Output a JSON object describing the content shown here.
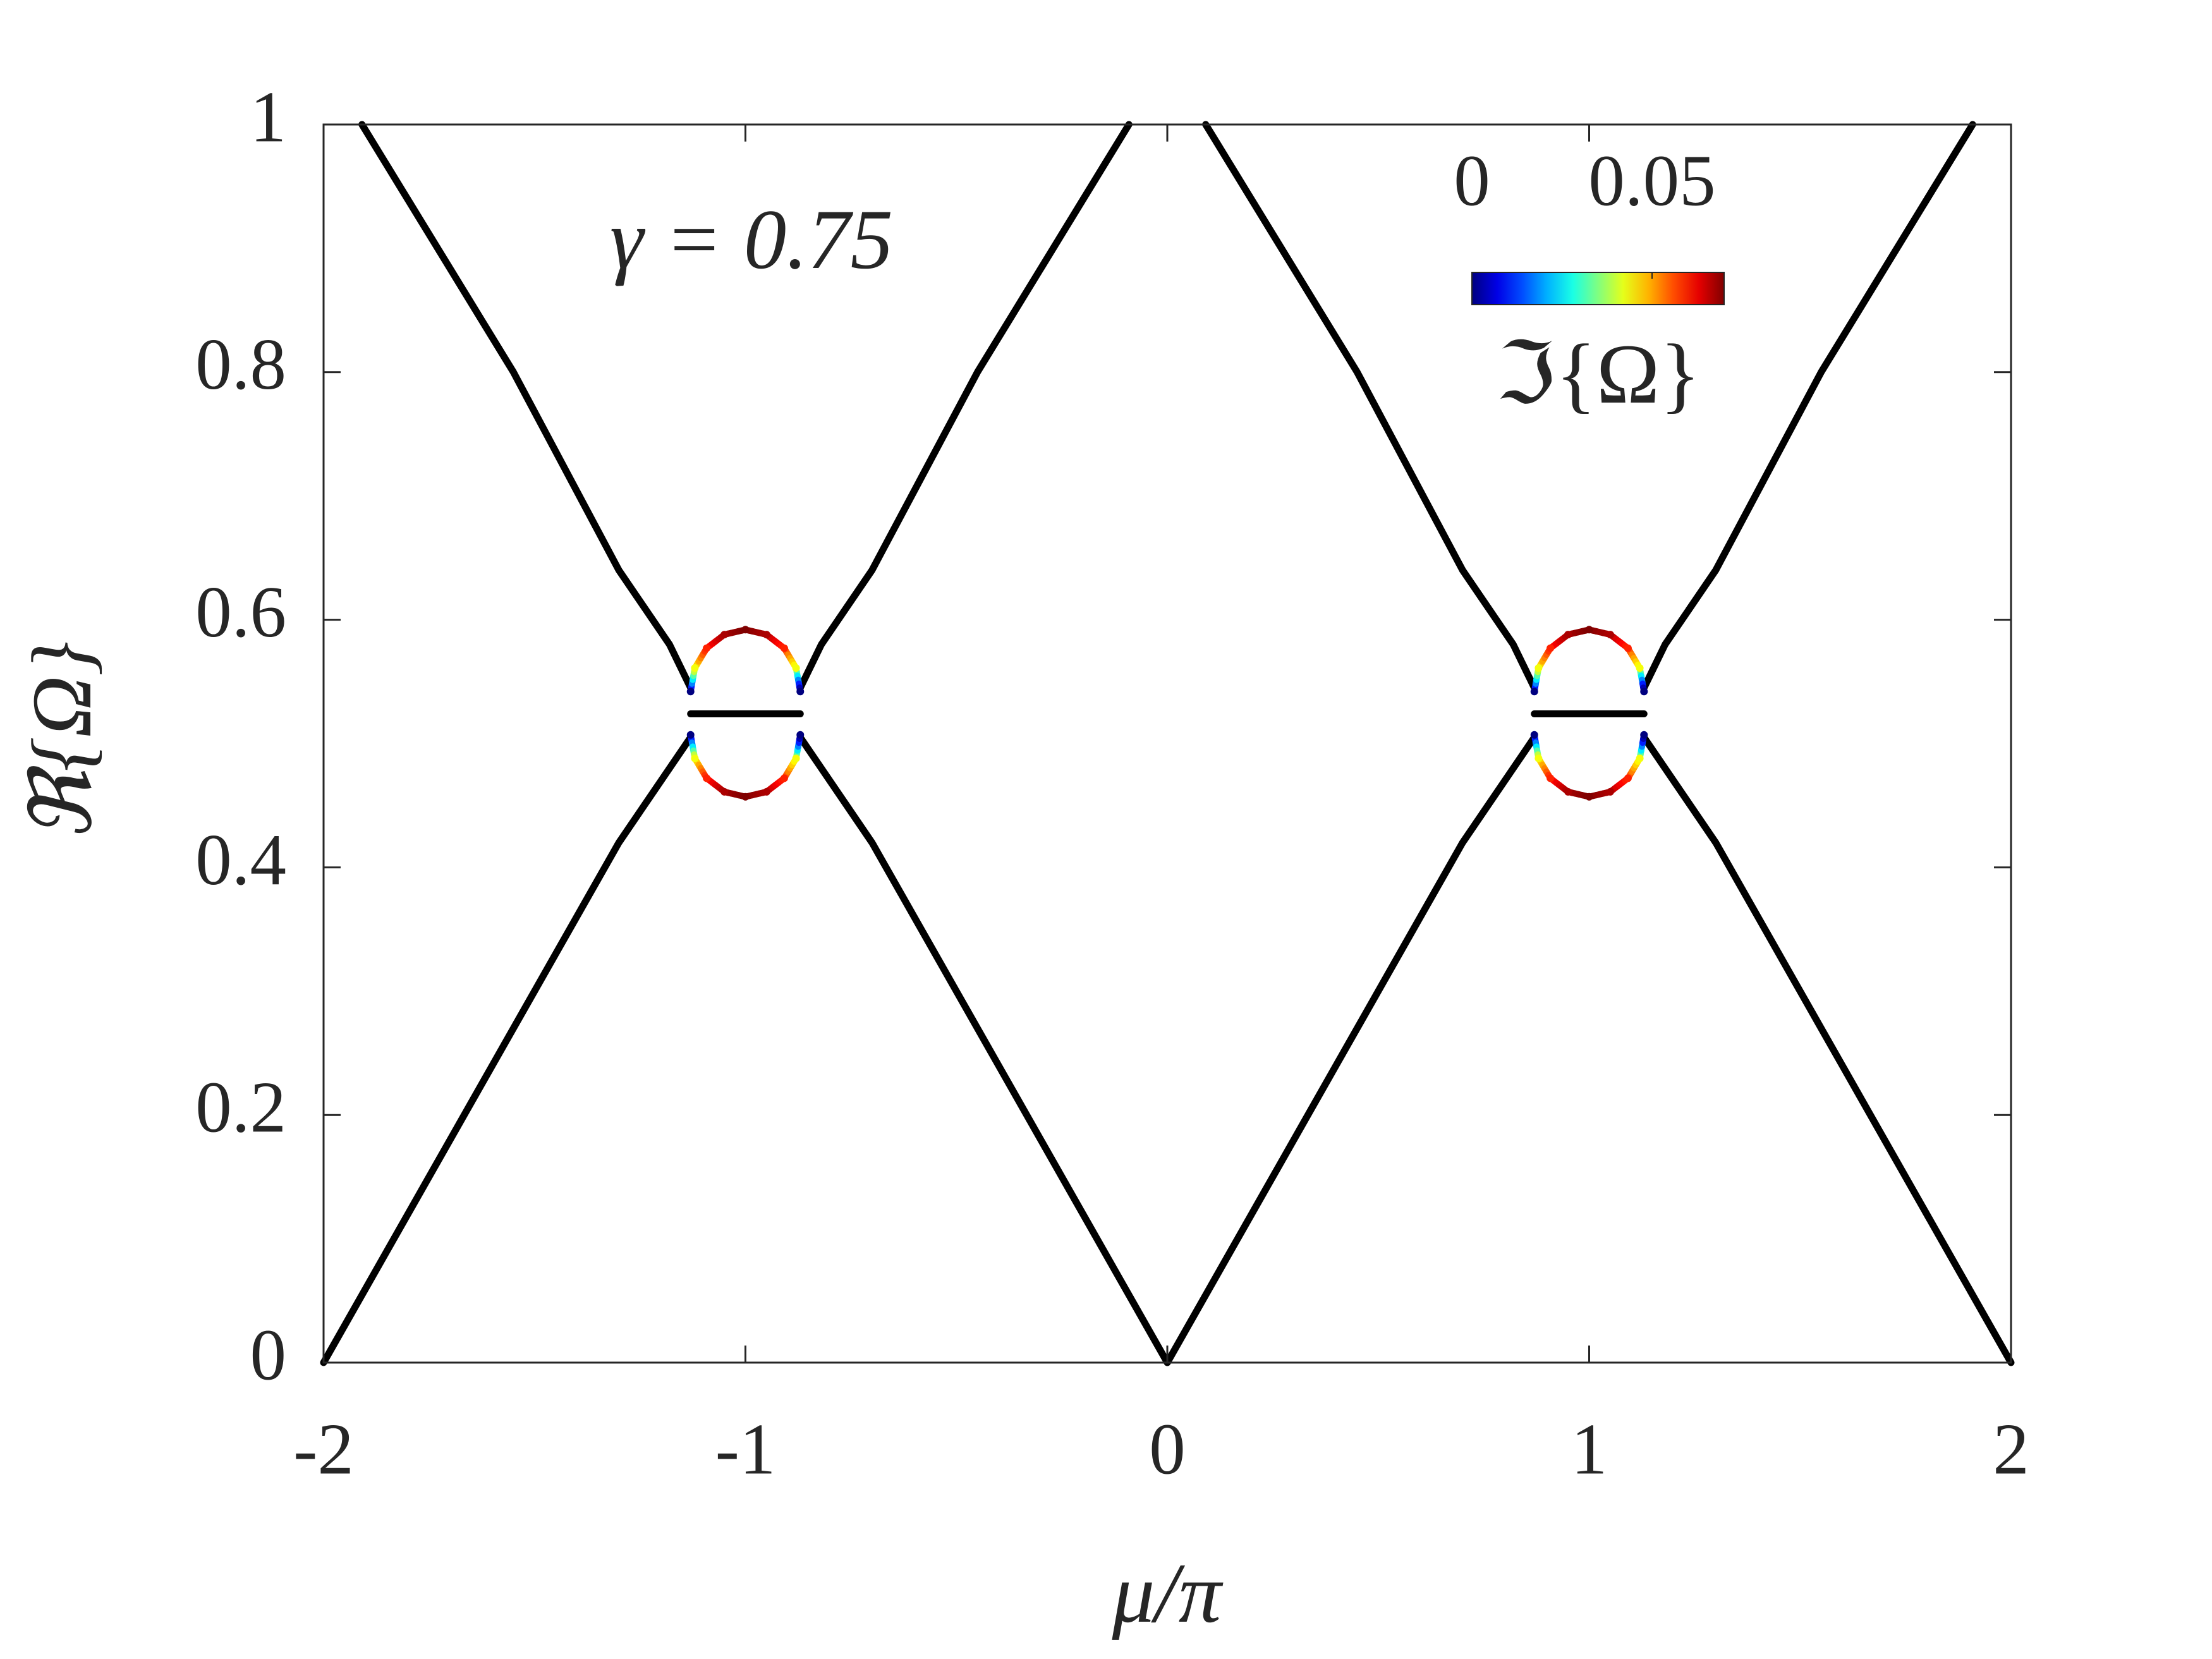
{
  "chart_data": {
    "type": "line",
    "xlabel": "μ/π",
    "ylabel": "ℜ{Ω}",
    "annotation": "γ = 0.75",
    "xlim": [
      -2,
      2
    ],
    "ylim": [
      0,
      1
    ],
    "xticks": [
      -2,
      -1,
      0,
      1,
      2
    ],
    "yticks": [
      0,
      0.2,
      0.4,
      0.6,
      0.8,
      1
    ],
    "grid": false,
    "colorbar": {
      "colormap": "jet",
      "clim": [
        0,
        0.07
      ],
      "ticks": [
        0,
        0.05
      ],
      "label": "ℑ{Ω}"
    },
    "series": [
      {
        "type": "line",
        "color": "#000000",
        "x": [
          -2,
          -1.6,
          -1.3,
          -1.18,
          -1.13
        ],
        "values": [
          0,
          0.24,
          0.42,
          0.48,
          0.505
        ]
      },
      {
        "type": "line",
        "color": "#000000",
        "x": [
          -1.909,
          -1.55,
          -1.3,
          -1.18,
          -1.13
        ],
        "values": [
          1,
          0.8,
          0.64,
          0.58,
          0.545
        ]
      },
      {
        "type": "line",
        "color": "#000000",
        "x": [
          -0.87,
          -0.82,
          -0.7,
          -0.45,
          -0.091
        ],
        "values": [
          0.545,
          0.58,
          0.64,
          0.8,
          1
        ]
      },
      {
        "type": "line",
        "color": "#000000",
        "x": [
          -0.87,
          -0.82,
          -0.7,
          -0.4,
          0
        ],
        "values": [
          0.505,
          0.48,
          0.42,
          0.24,
          0
        ]
      },
      {
        "type": "line",
        "color": "#000000",
        "x": [
          0,
          0.4,
          0.7,
          0.82,
          0.87
        ],
        "values": [
          0,
          0.24,
          0.42,
          0.48,
          0.505
        ]
      },
      {
        "type": "line",
        "color": "#000000",
        "x": [
          0.091,
          0.45,
          0.7,
          0.82,
          0.87
        ],
        "values": [
          1,
          0.8,
          0.64,
          0.58,
          0.545
        ]
      },
      {
        "type": "line",
        "color": "#000000",
        "x": [
          1.13,
          1.18,
          1.3,
          1.55,
          1.909
        ],
        "values": [
          0.545,
          0.58,
          0.64,
          0.8,
          1
        ]
      },
      {
        "type": "line",
        "color": "#000000",
        "x": [
          1.13,
          1.18,
          1.3,
          1.6,
          2
        ],
        "values": [
          0.505,
          0.48,
          0.42,
          0.24,
          0
        ]
      },
      {
        "type": "line",
        "color": "#000000",
        "x": [
          -1.13,
          -0.87
        ],
        "values": [
          0.524,
          0.524
        ]
      },
      {
        "type": "line",
        "color": "#000000",
        "x": [
          0.87,
          1.13
        ],
        "values": [
          0.524,
          0.524
        ]
      },
      {
        "type": "scatter",
        "x": [
          -1.13,
          -1.12,
          -1.092,
          -1.05,
          -1,
          -0.95,
          -0.908,
          -0.88,
          -0.87
        ],
        "values": [
          0.542,
          0.561,
          0.577,
          0.588,
          0.592,
          0.588,
          0.577,
          0.561,
          0.542
        ],
        "color_values": [
          0,
          0.043,
          0.059,
          0.067,
          0.07,
          0.067,
          0.059,
          0.043,
          0
        ]
      },
      {
        "type": "scatter",
        "x": [
          -1.13,
          -1.12,
          -1.092,
          -1.05,
          -1,
          -0.95,
          -0.908,
          -0.88,
          -0.87
        ],
        "values": [
          0.507,
          0.488,
          0.472,
          0.461,
          0.457,
          0.461,
          0.472,
          0.488,
          0.507
        ],
        "color_values": [
          0,
          0.043,
          0.059,
          0.067,
          0.07,
          0.067,
          0.059,
          0.043,
          0
        ]
      },
      {
        "type": "scatter",
        "x": [
          0.87,
          0.88,
          0.908,
          0.95,
          1,
          1.05,
          1.092,
          1.12,
          1.13
        ],
        "values": [
          0.542,
          0.561,
          0.577,
          0.588,
          0.592,
          0.588,
          0.577,
          0.561,
          0.542
        ],
        "color_values": [
          0,
          0.043,
          0.059,
          0.067,
          0.07,
          0.067,
          0.059,
          0.043,
          0
        ]
      },
      {
        "type": "scatter",
        "x": [
          0.87,
          0.88,
          0.908,
          0.95,
          1,
          1.05,
          1.092,
          1.12,
          1.13
        ],
        "values": [
          0.507,
          0.488,
          0.472,
          0.461,
          0.457,
          0.461,
          0.472,
          0.488,
          0.507
        ],
        "color_values": [
          0,
          0.043,
          0.059,
          0.067,
          0.07,
          0.067,
          0.059,
          0.043,
          0
        ]
      }
    ]
  }
}
